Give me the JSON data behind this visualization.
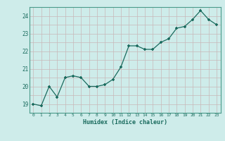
{
  "x": [
    0,
    1,
    2,
    3,
    4,
    5,
    6,
    7,
    8,
    9,
    10,
    11,
    12,
    13,
    14,
    15,
    16,
    17,
    18,
    19,
    20,
    21,
    22,
    23
  ],
  "y": [
    19.0,
    18.9,
    20.0,
    19.4,
    20.5,
    20.6,
    20.5,
    20.0,
    20.0,
    20.1,
    20.4,
    21.1,
    22.3,
    22.3,
    22.1,
    22.1,
    22.5,
    22.7,
    23.3,
    23.4,
    23.8,
    24.3,
    23.8,
    23.5
  ],
  "line_color": "#1a6b5e",
  "marker_color": "#1a6b5e",
  "bg_color": "#ceecea",
  "grid_color": "#c8b8b8",
  "xlabel": "Humidex (Indice chaleur)",
  "ylim": [
    18.5,
    24.5
  ],
  "xlim": [
    -0.5,
    23.5
  ],
  "yticks": [
    19,
    20,
    21,
    22,
    23,
    24
  ],
  "xticks": [
    0,
    1,
    2,
    3,
    4,
    5,
    6,
    7,
    8,
    9,
    10,
    11,
    12,
    13,
    14,
    15,
    16,
    17,
    18,
    19,
    20,
    21,
    22,
    23
  ]
}
